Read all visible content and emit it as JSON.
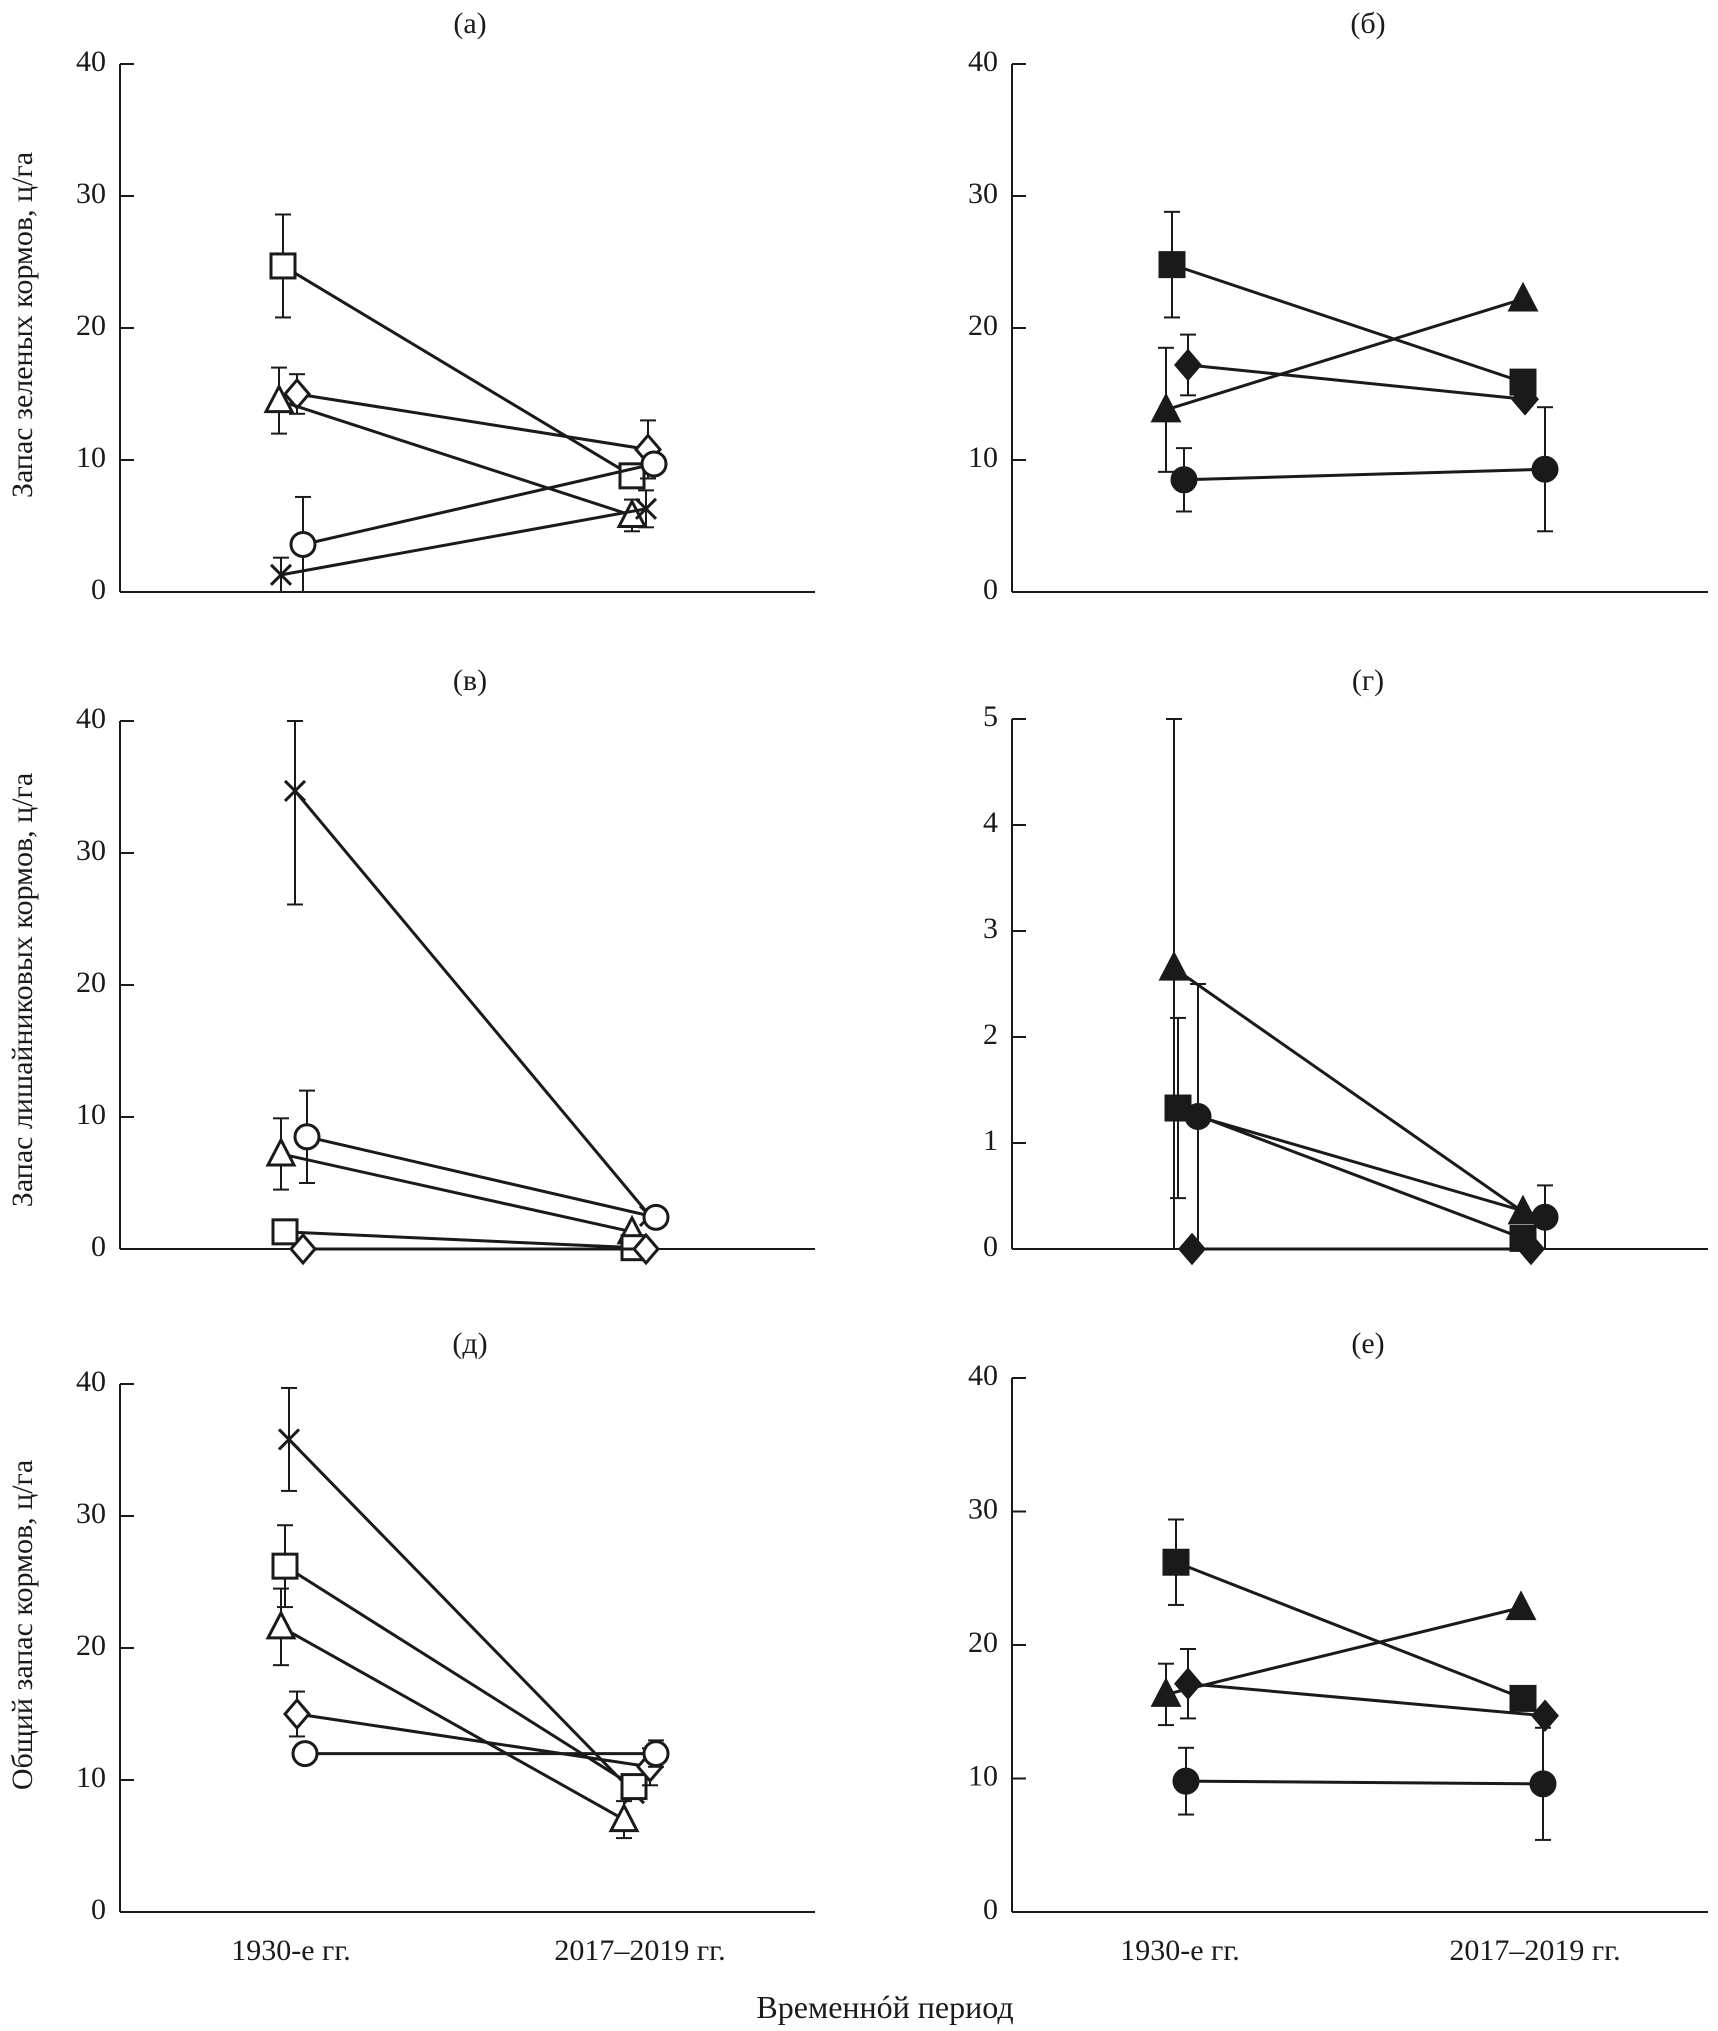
{
  "figure": {
    "y_labels": [
      "Запас зеленых кормов, ц/га",
      "Запас лишайниковых кормов, ц/га",
      "Общий запас кормов, ц/га"
    ],
    "x_label": "Временнóй период"
  },
  "chart_data": [
    {
      "type": "line",
      "panel": "(а)",
      "categories": [
        "1930-е гг.",
        "2017–2019 гг."
      ],
      "ylim": [
        0,
        40
      ],
      "yticks": [
        0,
        10,
        20,
        30,
        40
      ],
      "series": [
        {
          "marker": "square-open",
          "values": [
            24.7,
            8.8
          ],
          "err": [
            3.9,
            0
          ]
        },
        {
          "marker": "diamond-open",
          "values": [
            15.0,
            10.8
          ],
          "err": [
            1.5,
            2.2
          ]
        },
        {
          "marker": "triangle-open",
          "values": [
            14.5,
            5.8
          ],
          "err": [
            2.5,
            1.2
          ]
        },
        {
          "marker": "circle-open",
          "values": [
            3.6,
            9.7
          ],
          "err": [
            3.6,
            0
          ]
        },
        {
          "marker": "cross",
          "values": [
            1.3,
            6.3
          ],
          "err": [
            1.3,
            1.4
          ]
        }
      ]
    },
    {
      "type": "line",
      "panel": "(б)",
      "categories": [
        "1930-е гг.",
        "2017–2019 гг."
      ],
      "ylim": [
        0,
        40
      ],
      "yticks": [
        0,
        10,
        20,
        30,
        40
      ],
      "series": [
        {
          "marker": "square-filled",
          "values": [
            24.8,
            15.9
          ],
          "err": [
            4.0,
            0
          ]
        },
        {
          "marker": "triangle-filled",
          "values": [
            13.8,
            22.2
          ],
          "err": [
            4.7,
            0
          ]
        },
        {
          "marker": "diamond-filled",
          "values": [
            17.2,
            14.6
          ],
          "err": [
            2.3,
            0
          ]
        },
        {
          "marker": "circle-filled",
          "values": [
            8.5,
            9.3
          ],
          "err": [
            2.4,
            4.7
          ]
        }
      ]
    },
    {
      "type": "line",
      "panel": "(в)",
      "categories": [
        "1930-е гг.",
        "2017–2019 гг."
      ],
      "ylim": [
        0,
        40
      ],
      "yticks": [
        0,
        10,
        20,
        30,
        40
      ],
      "series": [
        {
          "marker": "cross",
          "values": [
            34.7,
            2.5
          ],
          "err": [
            8.6,
            0
          ]
        },
        {
          "marker": "circle-open",
          "values": [
            8.5,
            2.4
          ],
          "err": [
            3.5,
            0
          ]
        },
        {
          "marker": "triangle-open",
          "values": [
            7.2,
            1.3
          ],
          "err": [
            2.7,
            0
          ]
        },
        {
          "marker": "square-open",
          "values": [
            1.3,
            0.1
          ],
          "err": [
            0,
            0
          ]
        },
        {
          "marker": "diamond-open",
          "values": [
            0,
            0
          ],
          "err": [
            0,
            0
          ]
        }
      ]
    },
    {
      "type": "line",
      "panel": "(г)",
      "categories": [
        "1930-е гг.",
        "2017–2019 гг."
      ],
      "ylim": [
        0,
        5
      ],
      "yticks": [
        0,
        1,
        2,
        3,
        4,
        5
      ],
      "series": [
        {
          "marker": "triangle-filled",
          "values": [
            2.65,
            0.35
          ],
          "err": [
            2.65,
            0
          ]
        },
        {
          "marker": "square-filled",
          "values": [
            1.33,
            0.1
          ],
          "err": [
            0.85,
            0
          ]
        },
        {
          "marker": "circle-filled",
          "values": [
            1.25,
            0.3
          ],
          "err": [
            1.25,
            0.3
          ]
        },
        {
          "marker": "diamond-filled",
          "values": [
            0,
            0
          ],
          "err": [
            0,
            0
          ]
        }
      ]
    },
    {
      "type": "line",
      "panel": "(д)",
      "categories": [
        "1930-е гг.",
        "2017–2019 гг."
      ],
      "ylim": [
        0,
        40
      ],
      "yticks": [
        0,
        10,
        20,
        30,
        40
      ],
      "series": [
        {
          "marker": "cross",
          "values": [
            35.8,
            9.0
          ],
          "err": [
            3.9,
            0
          ]
        },
        {
          "marker": "square-open",
          "values": [
            26.2,
            9.5
          ],
          "err": [
            3.1,
            0
          ]
        },
        {
          "marker": "triangle-open",
          "values": [
            21.6,
            7.0
          ],
          "err": [
            2.9,
            1.4
          ]
        },
        {
          "marker": "diamond-open",
          "values": [
            15.0,
            11.0
          ],
          "err": [
            1.7,
            1.4
          ]
        },
        {
          "marker": "circle-open",
          "values": [
            12.0,
            12.0
          ],
          "err": [
            0,
            1.0
          ]
        }
      ]
    },
    {
      "type": "line",
      "panel": "(е)",
      "categories": [
        "1930-е гг.",
        "2017–2019 гг."
      ],
      "ylim": [
        0,
        40
      ],
      "yticks": [
        0,
        10,
        20,
        30,
        40
      ],
      "series": [
        {
          "marker": "square-filled",
          "values": [
            26.2,
            16.0
          ],
          "err": [
            3.2,
            0
          ]
        },
        {
          "marker": "triangle-filled",
          "values": [
            16.3,
            22.8
          ],
          "err": [
            2.3,
            0
          ]
        },
        {
          "marker": "diamond-filled",
          "values": [
            17.1,
            14.7
          ],
          "err": [
            2.6,
            0
          ]
        },
        {
          "marker": "circle-filled",
          "values": [
            9.8,
            9.6
          ],
          "err": [
            2.5,
            4.2
          ]
        }
      ]
    }
  ]
}
